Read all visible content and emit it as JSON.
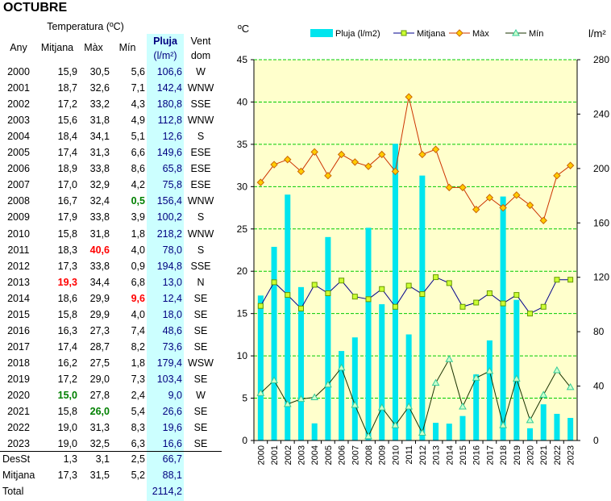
{
  "title": "OCTUBRE",
  "table": {
    "headers": {
      "temperatura": "Temperatura (ºC)",
      "any": "Any",
      "mitjana": "Mitjana",
      "max": "Màx",
      "min": "Mín",
      "pluja": "Pluja",
      "pluja_unit": "(l/m²)",
      "vent": "Vent",
      "vent_sub": "dom"
    },
    "rows": [
      {
        "any": "2000",
        "mitjana": "15,9",
        "max": "30,5",
        "min": "5,6",
        "pluja": "106,6",
        "vent": "W"
      },
      {
        "any": "2001",
        "mitjana": "18,7",
        "max": "32,6",
        "min": "7,1",
        "pluja": "142,4",
        "vent": "WNW"
      },
      {
        "any": "2002",
        "mitjana": "17,2",
        "max": "33,2",
        "min": "4,3",
        "pluja": "180,8",
        "vent": "SSE"
      },
      {
        "any": "2003",
        "mitjana": "15,6",
        "max": "31,8",
        "min": "4,9",
        "pluja": "112,8",
        "vent": "WNW"
      },
      {
        "any": "2004",
        "mitjana": "18,4",
        "max": "34,1",
        "min": "5,1",
        "pluja": "12,6",
        "vent": "S"
      },
      {
        "any": "2005",
        "mitjana": "17,4",
        "max": "31,3",
        "min": "6,6",
        "pluja": "149,6",
        "vent": "ESE"
      },
      {
        "any": "2006",
        "mitjana": "18,9",
        "max": "33,8",
        "min": "8,6",
        "pluja": "65,8",
        "vent": "ESE"
      },
      {
        "any": "2007",
        "mitjana": "17,0",
        "max": "32,9",
        "min": "4,2",
        "pluja": "75,8",
        "vent": "ESE"
      },
      {
        "any": "2008",
        "mitjana": "16,7",
        "max": "32,4",
        "min": "0,5",
        "pluja": "156,4",
        "vent": "WNW"
      },
      {
        "any": "2009",
        "mitjana": "17,9",
        "max": "33,8",
        "min": "3,9",
        "pluja": "100,2",
        "vent": "S"
      },
      {
        "any": "2010",
        "mitjana": "15,8",
        "max": "31,8",
        "min": "1,8",
        "pluja": "218,2",
        "vent": "WNW"
      },
      {
        "any": "2011",
        "mitjana": "18,3",
        "max": "40,6",
        "min": "4,0",
        "pluja": "78,0",
        "vent": "S"
      },
      {
        "any": "2012",
        "mitjana": "17,3",
        "max": "33,8",
        "min": "0,9",
        "pluja": "194,8",
        "vent": "SSE"
      },
      {
        "any": "2013",
        "mitjana": "19,3",
        "max": "34,4",
        "min": "6,8",
        "pluja": "13,0",
        "vent": "N"
      },
      {
        "any": "2014",
        "mitjana": "18,6",
        "max": "29,9",
        "min": "9,6",
        "pluja": "12,4",
        "vent": "SE"
      },
      {
        "any": "2015",
        "mitjana": "15,8",
        "max": "29,9",
        "min": "4,0",
        "pluja": "18,0",
        "vent": "SE"
      },
      {
        "any": "2016",
        "mitjana": "16,3",
        "max": "27,3",
        "min": "7,4",
        "pluja": "48,6",
        "vent": "SE"
      },
      {
        "any": "2017",
        "mitjana": "17,4",
        "max": "28,7",
        "min": "8,2",
        "pluja": "73,6",
        "vent": "SE"
      },
      {
        "any": "2018",
        "mitjana": "16,2",
        "max": "27,5",
        "min": "1,8",
        "pluja": "179,4",
        "vent": "WSW"
      },
      {
        "any": "2019",
        "mitjana": "17,2",
        "max": "29,0",
        "min": "7,3",
        "pluja": "103,4",
        "vent": "SE"
      },
      {
        "any": "2020",
        "mitjana": "15,0",
        "max": "27,8",
        "min": "2,4",
        "pluja": "9,0",
        "vent": "W"
      },
      {
        "any": "2021",
        "mitjana": "15,8",
        "max": "26,0",
        "min": "5,4",
        "pluja": "26,6",
        "vent": "SE"
      },
      {
        "any": "2022",
        "mitjana": "19,0",
        "max": "31,3",
        "min": "8,3",
        "pluja": "19,6",
        "vent": "SE"
      },
      {
        "any": "2023",
        "mitjana": "19,0",
        "max": "32,5",
        "min": "6,3",
        "pluja": "16,6",
        "vent": "SE"
      }
    ],
    "highlights": [
      {
        "row": 8,
        "col": "min",
        "color": "#008000"
      },
      {
        "row": 11,
        "col": "max",
        "color": "#ff0000"
      },
      {
        "row": 13,
        "col": "mitjana",
        "color": "#ff0000"
      },
      {
        "row": 14,
        "col": "min",
        "color": "#ff0000"
      },
      {
        "row": 20,
        "col": "mitjana",
        "color": "#008000"
      },
      {
        "row": 21,
        "col": "max",
        "color": "#008000"
      }
    ],
    "summary": [
      {
        "label": "DesSt",
        "mitjana": "1,3",
        "max": "3,1",
        "min": "2,5",
        "pluja": "66,7"
      },
      {
        "label": "Mitjana",
        "mitjana": "17,3",
        "max": "31,5",
        "min": "5,2",
        "pluja": "88,1"
      },
      {
        "label": "Total",
        "mitjana": "",
        "max": "",
        "min": "",
        "pluja": "2114,2"
      }
    ]
  },
  "chart_data": {
    "type": "bar",
    "categories": [
      "2000",
      "2001",
      "2002",
      "2003",
      "2004",
      "2005",
      "2006",
      "2007",
      "2008",
      "2009",
      "2010",
      "2011",
      "2012",
      "2013",
      "2014",
      "2015",
      "2016",
      "2017",
      "2018",
      "2019",
      "2020",
      "2021",
      "2022",
      "2023"
    ],
    "bar_series": {
      "name": "Pluja (l/m2)",
      "axis": "right",
      "color": "#00e5ee",
      "values": [
        106.6,
        142.4,
        180.8,
        112.8,
        12.6,
        149.6,
        65.8,
        75.8,
        156.4,
        100.2,
        218.2,
        78.0,
        194.8,
        13.0,
        12.4,
        18.0,
        48.6,
        73.6,
        179.4,
        103.4,
        9.0,
        26.6,
        19.6,
        16.6
      ]
    },
    "series": [
      {
        "name": "Mitjana",
        "axis": "left",
        "line_color": "#00008b",
        "marker": "square",
        "marker_fill": "#ccff33",
        "marker_stroke": "#669900",
        "values": [
          15.9,
          18.7,
          17.2,
          15.6,
          18.4,
          17.4,
          18.9,
          17.0,
          16.7,
          17.9,
          15.8,
          18.3,
          17.3,
          19.3,
          18.6,
          15.8,
          16.3,
          17.4,
          16.2,
          17.2,
          15.0,
          15.8,
          19.0,
          19.0
        ]
      },
      {
        "name": "Màx",
        "axis": "left",
        "line_color": "#cc3300",
        "marker": "diamond",
        "marker_fill": "#ffcc00",
        "marker_stroke": "#cc6600",
        "values": [
          30.5,
          32.6,
          33.2,
          31.8,
          34.1,
          31.3,
          33.8,
          32.9,
          32.4,
          33.8,
          31.8,
          40.6,
          33.8,
          34.4,
          29.9,
          29.9,
          27.3,
          28.7,
          27.5,
          29.0,
          27.8,
          26.0,
          31.3,
          32.5
        ]
      },
      {
        "name": "Mín",
        "axis": "left",
        "line_color": "#1a3300",
        "marker": "triangle",
        "marker_fill": "#ccffcc",
        "marker_stroke": "#33cc99",
        "values": [
          5.6,
          7.1,
          4.3,
          4.9,
          5.1,
          6.6,
          8.6,
          4.2,
          0.5,
          3.9,
          1.8,
          4.0,
          0.9,
          6.8,
          9.6,
          4.0,
          7.4,
          8.2,
          1.8,
          7.3,
          2.4,
          5.4,
          8.3,
          6.3
        ]
      }
    ],
    "left_axis": {
      "label": "ºC",
      "min": 0,
      "max": 45,
      "ticks": [
        "0",
        "5",
        "10",
        "15",
        "20",
        "25",
        "30",
        "35",
        "40",
        "45"
      ]
    },
    "right_axis": {
      "label": "l/m²",
      "min": 0,
      "max": 280,
      "ticks": [
        "0",
        "40",
        "80",
        "120",
        "160",
        "200",
        "240",
        "280"
      ]
    },
    "plot_background": "#ffffcc",
    "grid_color": "#00cc00",
    "legend_position": "top"
  }
}
